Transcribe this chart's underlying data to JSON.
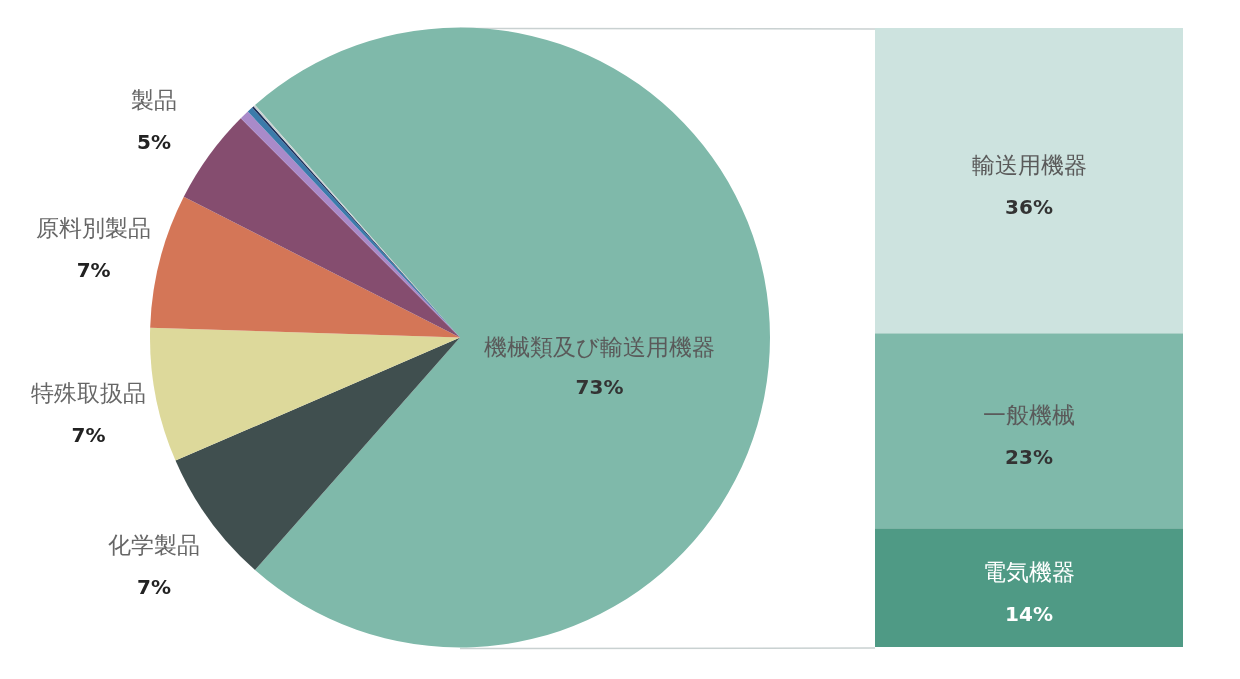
{
  "chart_data": [
    {
      "type": "pie",
      "categories": [
        "機械類及び輸送用機器",
        "化学製品",
        "特殊取扱品",
        "原料別製品",
        "製品",
        null,
        null,
        null,
        null
      ],
      "values": [
        73,
        7,
        7,
        7,
        5,
        0.5,
        0.3,
        0.1,
        0.1
      ],
      "colors": [
        "#7fb9aa",
        "#404f4f",
        "#ddd99b",
        "#d47657",
        "#854d6f",
        "#a98ac9",
        "#3b7bab",
        "#1c2e5a",
        "#c9d1d1"
      ],
      "value_labels": [
        "73%",
        "7%",
        "7%",
        "7%",
        "5%",
        null,
        null,
        null,
        null
      ]
    },
    {
      "type": "bar",
      "stacked": true,
      "categories": [
        null
      ],
      "series": [
        {
          "name": "電気機器",
          "color": "#4f9a85",
          "values": [
            14
          ],
          "value_labels": [
            "14%"
          ]
        },
        {
          "name": "一般機械",
          "color": "#7fb9aa",
          "values": [
            23
          ],
          "value_labels": [
            "23%"
          ]
        },
        {
          "name": "輸送用機器",
          "color": "#cde3df",
          "values": [
            36
          ],
          "value_labels": [
            "36%"
          ]
        }
      ]
    }
  ]
}
